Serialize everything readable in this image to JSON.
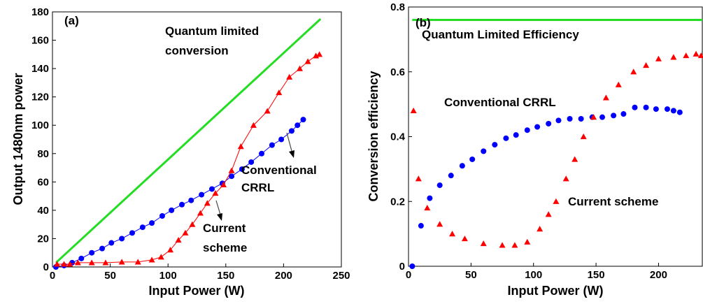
{
  "chart_data": [
    {
      "id": "a",
      "panel_label": "(a)",
      "type": "line",
      "xlabel": "Input Power (W)",
      "ylabel": "Output 1480nm power",
      "xlim": [
        0,
        250
      ],
      "ylim": [
        0,
        180
      ],
      "xticks": [
        0,
        50,
        100,
        150,
        200,
        250
      ],
      "yticks": [
        0,
        20,
        40,
        60,
        80,
        100,
        120,
        140,
        160,
        180
      ],
      "grid": false,
      "series": [
        {
          "color": "#22dd22",
          "marker": "none",
          "x": [
            3,
            232
          ],
          "y": [
            3,
            175
          ]
        },
        {
          "color": "#0000ff",
          "marker": "circle",
          "x": [
            3,
            10,
            17,
            25,
            34,
            43,
            51,
            60,
            69,
            78,
            86,
            95,
            103,
            112,
            120,
            129,
            138,
            147,
            155,
            164,
            172,
            181,
            190,
            198,
            207,
            212,
            217
          ],
          "y": [
            0,
            1,
            3,
            6,
            10,
            13,
            17,
            20,
            24,
            28,
            31,
            36,
            40,
            44,
            47,
            51,
            55,
            59,
            64,
            69,
            74,
            80,
            86,
            90,
            96,
            100,
            104
          ]
        },
        {
          "color": "#ff0000",
          "marker": "triangle",
          "x": [
            4,
            10,
            15,
            22,
            34,
            46,
            60,
            74,
            86,
            94,
            102,
            109,
            115,
            121,
            128,
            134,
            141,
            148,
            155,
            163,
            174,
            186,
            196,
            205,
            214,
            221,
            228,
            231
          ],
          "y": [
            2,
            2,
            2,
            3,
            3,
            3,
            3.5,
            3.5,
            5,
            7,
            12,
            19,
            24,
            30,
            38,
            45,
            52,
            58,
            68,
            85,
            100,
            110,
            123,
            134,
            140,
            145,
            149,
            150
          ]
        }
      ],
      "annotations": [
        {
          "lines": [
            "Quantum limited",
            "conversion"
          ]
        },
        {
          "lines": [
            "Conventional",
            "CRRL"
          ]
        },
        {
          "lines": [
            "Current",
            "scheme"
          ]
        }
      ]
    },
    {
      "id": "b",
      "panel_label": "(b)",
      "type": "scatter",
      "xlabel": "Input Power (W)",
      "ylabel": "Conversion efficiency",
      "xlim": [
        0,
        235
      ],
      "ylim": [
        0,
        0.8
      ],
      "xticks": [
        0,
        50,
        100,
        150,
        200
      ],
      "yticks": [
        0,
        0.2,
        0.4,
        0.6,
        0.8
      ],
      "grid": false,
      "series": [
        {
          "color": "#22dd22",
          "marker": "none",
          "x": [
            3,
            235
          ],
          "y": [
            0.76,
            0.76
          ]
        },
        {
          "color": "#0000ff",
          "marker": "circle",
          "x": [
            3,
            10,
            17,
            25,
            34,
            43,
            51,
            60,
            69,
            78,
            86,
            95,
            103,
            112,
            120,
            129,
            138,
            147,
            155,
            164,
            172,
            181,
            190,
            198,
            207,
            212,
            217
          ],
          "y": [
            0,
            0.125,
            0.21,
            0.25,
            0.28,
            0.31,
            0.33,
            0.355,
            0.375,
            0.395,
            0.405,
            0.42,
            0.43,
            0.44,
            0.45,
            0.455,
            0.455,
            0.46,
            0.46,
            0.465,
            0.47,
            0.49,
            0.49,
            0.485,
            0.485,
            0.48,
            0.475
          ]
        },
        {
          "color": "#ff0000",
          "marker": "triangle",
          "x": [
            4,
            8,
            15,
            25,
            35,
            45,
            60,
            75,
            85,
            95,
            105,
            112,
            118,
            126,
            133,
            140,
            148,
            158,
            168,
            180,
            190,
            200,
            212,
            222,
            230,
            234
          ],
          "y": [
            0.48,
            0.27,
            0.18,
            0.13,
            0.1,
            0.085,
            0.07,
            0.065,
            0.065,
            0.075,
            0.115,
            0.16,
            0.2,
            0.27,
            0.33,
            0.4,
            0.46,
            0.52,
            0.56,
            0.6,
            0.62,
            0.64,
            0.645,
            0.65,
            0.655,
            0.65
          ]
        }
      ],
      "annotations": [
        {
          "lines": [
            "Quantum Limited Efficiency"
          ]
        },
        {
          "lines": [
            "Conventional CRRL"
          ]
        },
        {
          "lines": [
            "Current scheme"
          ]
        }
      ]
    }
  ]
}
